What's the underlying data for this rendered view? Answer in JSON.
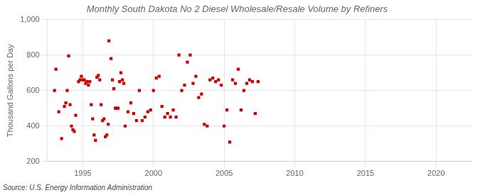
{
  "chart_data": {
    "type": "scatter",
    "title": "Monthly South Dakota No 2 Diesel Wholesale/Resale Volume by Refiners",
    "ylabel": "Thousand Gallons per Day",
    "annotations": [
      "Source: U.S. Energy Information Administration"
    ],
    "color": "#cc0000",
    "marker": "square",
    "grid": true,
    "xlim": [
      1992.5,
      2022.5
    ],
    "ylim": [
      200,
      1000
    ],
    "xticks": [
      1995,
      2000,
      2005,
      2010,
      2015,
      2020
    ],
    "yticks": [
      200,
      400,
      600,
      800,
      {
        "value": 1000,
        "label": "1,000"
      }
    ],
    "x": [
      1993.0,
      1993.1,
      1993.3,
      1993.5,
      1993.7,
      1993.8,
      1993.9,
      1994.0,
      1994.1,
      1994.2,
      1994.3,
      1994.4,
      1994.5,
      1994.7,
      1994.8,
      1994.9,
      1995.0,
      1995.1,
      1995.2,
      1995.3,
      1995.4,
      1995.5,
      1995.6,
      1995.7,
      1995.8,
      1995.9,
      1996.0,
      1996.1,
      1996.2,
      1996.3,
      1996.4,
      1996.5,
      1996.6,
      1996.7,
      1996.8,
      1996.85,
      1997.0,
      1997.1,
      1997.2,
      1997.3,
      1997.4,
      1997.5,
      1997.6,
      1997.7,
      1997.8,
      1997.9,
      1998.0,
      1998.2,
      1998.4,
      1998.6,
      1998.8,
      1999.0,
      1999.2,
      1999.4,
      1999.6,
      1999.8,
      2000.0,
      2000.2,
      2000.4,
      2000.6,
      2000.8,
      2001.0,
      2001.2,
      2001.4,
      2001.6,
      2001.8,
      2002.0,
      2002.2,
      2002.4,
      2002.6,
      2002.8,
      2003.0,
      2003.2,
      2003.4,
      2003.6,
      2003.8,
      2004.0,
      2004.2,
      2004.4,
      2004.6,
      2004.8,
      2005.0,
      2005.2,
      2005.4,
      2005.6,
      2005.8,
      2006.0,
      2006.2,
      2006.4,
      2006.6,
      2006.8,
      2007.0,
      2007.2,
      2007.4
    ],
    "values": [
      600,
      720,
      480,
      330,
      510,
      530,
      600,
      795,
      520,
      400,
      380,
      370,
      460,
      650,
      660,
      680,
      660,
      660,
      640,
      650,
      630,
      650,
      520,
      440,
      350,
      320,
      675,
      685,
      660,
      520,
      430,
      440,
      340,
      350,
      410,
      880,
      780,
      660,
      610,
      500,
      500,
      500,
      650,
      700,
      660,
      640,
      400,
      480,
      530,
      470,
      430,
      600,
      430,
      450,
      480,
      490,
      600,
      670,
      680,
      510,
      450,
      470,
      450,
      490,
      450,
      800,
      600,
      630,
      760,
      800,
      640,
      680,
      560,
      580,
      410,
      400,
      660,
      670,
      650,
      660,
      630,
      400,
      490,
      310,
      660,
      640,
      720,
      490,
      600,
      640,
      660,
      650,
      470,
      650
    ]
  }
}
